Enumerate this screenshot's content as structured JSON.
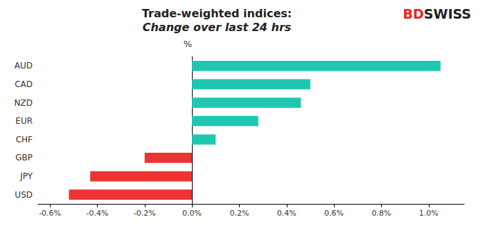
{
  "chart_data": {
    "type": "bar",
    "orientation": "horizontal",
    "title": "Trade-weighted indices:",
    "subtitle": "Change over last 24 hrs",
    "ylabel": "%",
    "annotations": [
      "BD",
      "SWISS"
    ],
    "categories": [
      "USD",
      "JPY",
      "GBP",
      "CHF",
      "EUR",
      "NZD",
      "CAD",
      "AUD"
    ],
    "values": [
      -0.52,
      -0.43,
      -0.2,
      0.1,
      0.28,
      0.46,
      0.5,
      1.05
    ],
    "colors": [
      "#ee3333",
      "#ee3333",
      "#ee3333",
      "#1ec8b0",
      "#1ec8b0",
      "#1ec8b0",
      "#1ec8b0",
      "#1ec8b0"
    ],
    "xlim": [
      -0.65,
      1.15
    ],
    "xticks": [
      {
        "value": -0.6,
        "label": "-0.6%"
      },
      {
        "value": -0.4,
        "label": "-0.4%"
      },
      {
        "value": -0.2,
        "label": "-0.2%"
      },
      {
        "value": 0.0,
        "label": "0.0%"
      },
      {
        "value": 0.2,
        "label": "0.2%"
      },
      {
        "value": 0.4,
        "label": "0.4%"
      },
      {
        "value": 0.6,
        "label": "0.6%"
      },
      {
        "value": 0.8,
        "label": "0.8%"
      },
      {
        "value": 1.0,
        "label": "1.0%"
      }
    ],
    "grid": false
  }
}
